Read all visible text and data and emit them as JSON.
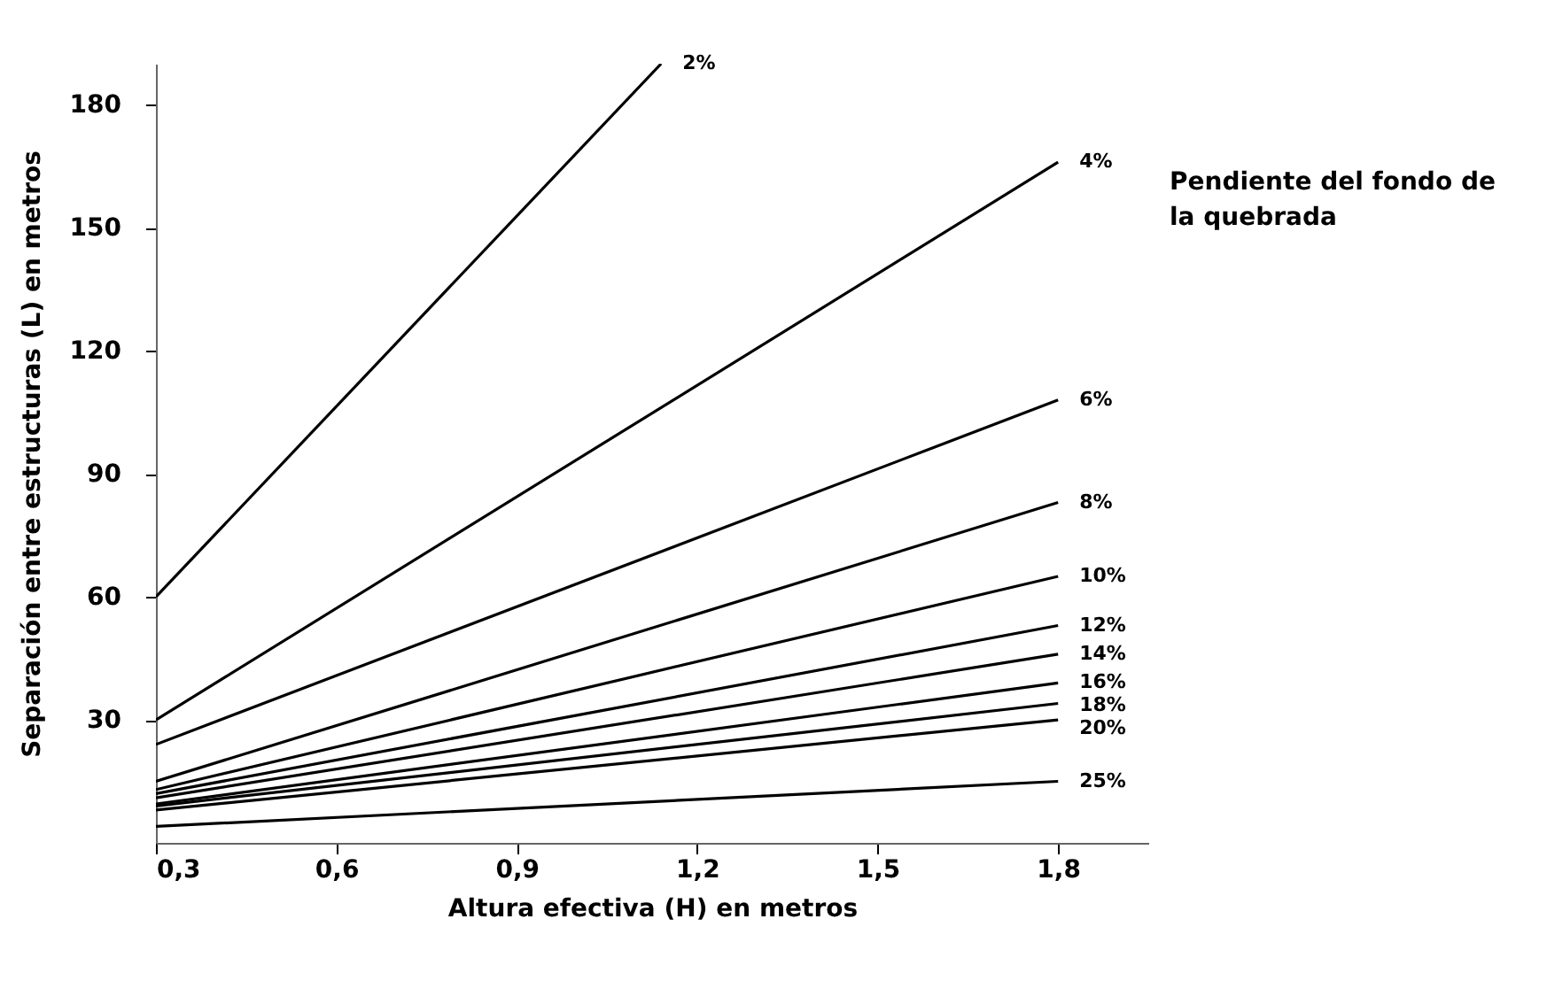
{
  "chart_data": {
    "type": "line",
    "xlabel": "Altura efectiva (H) en metros",
    "ylabel": "Separación entre estructuras (L) en metros",
    "annotations": [
      "Pendiente del fondo de la quebrada"
    ],
    "xlim": [
      0.3,
      1.95
    ],
    "ylim": [
      0,
      190
    ],
    "xticks": [
      {
        "value": 0.3,
        "label": "0,3"
      },
      {
        "value": 0.6,
        "label": "0,6"
      },
      {
        "value": 0.9,
        "label": "0,9"
      },
      {
        "value": 1.2,
        "label": "1,2"
      },
      {
        "value": 1.5,
        "label": "1,5"
      },
      {
        "value": 1.8,
        "label": "1,8"
      }
    ],
    "yticks": [
      30,
      60,
      90,
      120,
      150,
      180
    ],
    "grid": false,
    "legend": false,
    "marker": "none",
    "line_style": "solid",
    "series": [
      {
        "name": "2%",
        "color": "#000000",
        "x": [
          0.3,
          1.14
        ],
        "values": [
          60,
          190
        ]
      },
      {
        "name": "4%",
        "color": "#000000",
        "x": [
          0.3,
          1.8
        ],
        "values": [
          30,
          166
        ]
      },
      {
        "name": "6%",
        "color": "#000000",
        "x": [
          0.3,
          1.8
        ],
        "values": [
          24,
          108
        ]
      },
      {
        "name": "8%",
        "color": "#000000",
        "x": [
          0.3,
          1.8
        ],
        "values": [
          15,
          83
        ]
      },
      {
        "name": "10%",
        "color": "#000000",
        "x": [
          0.3,
          1.8
        ],
        "values": [
          13,
          65
        ]
      },
      {
        "name": "12%",
        "color": "#000000",
        "x": [
          0.3,
          1.8
        ],
        "values": [
          12,
          53
        ]
      },
      {
        "name": "14%",
        "color": "#000000",
        "x": [
          0.3,
          1.8
        ],
        "values": [
          11,
          46
        ]
      },
      {
        "name": "16%",
        "color": "#000000",
        "x": [
          0.3,
          1.8
        ],
        "values": [
          9.5,
          39
        ]
      },
      {
        "name": "18%",
        "color": "#000000",
        "x": [
          0.3,
          1.8
        ],
        "values": [
          9,
          34
        ]
      },
      {
        "name": "20%",
        "color": "#000000",
        "x": [
          0.3,
          1.8
        ],
        "values": [
          8,
          30
        ]
      },
      {
        "name": "25%",
        "color": "#000000",
        "x": [
          0.3,
          1.8
        ],
        "values": [
          4,
          15
        ]
      }
    ]
  }
}
